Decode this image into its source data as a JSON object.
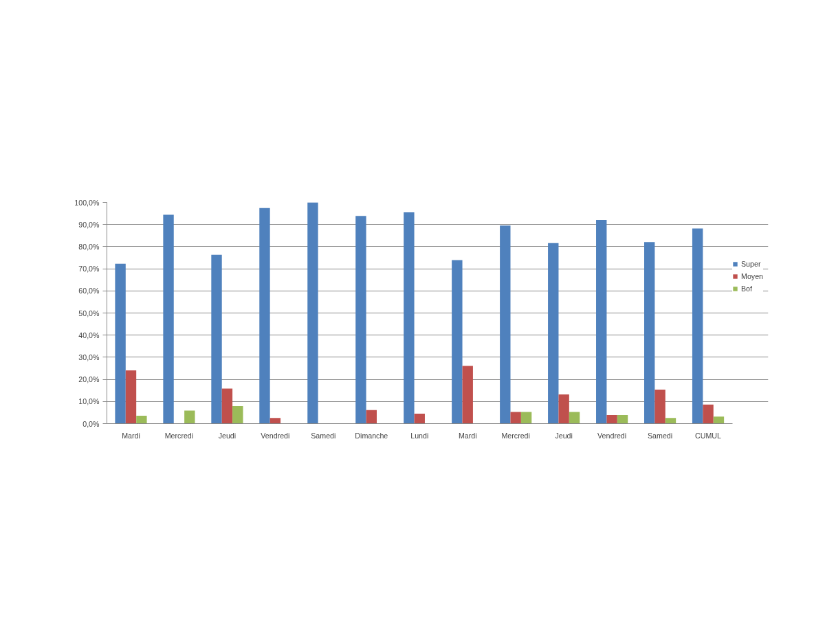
{
  "chart_data": {
    "type": "bar",
    "categories": [
      "Mardi",
      "Mercredi",
      "Jeudi",
      "Vendredi",
      "Samedi",
      "Dimanche",
      "Lundi",
      "Mardi",
      "Mercredi",
      "Jeudi",
      "Vendredi",
      "Samedi",
      "CUMUL"
    ],
    "series": [
      {
        "name": "Super",
        "color": "#4f81bd",
        "values": [
          72.3,
          94.4,
          76.3,
          97.4,
          100,
          93.9,
          95.5,
          73.9,
          89.5,
          81.6,
          92.1,
          82.1,
          88.2
        ]
      },
      {
        "name": "Moyen",
        "color": "#c0504d",
        "values": [
          24.1,
          0,
          15.8,
          2.6,
          0,
          6.1,
          4.5,
          26.1,
          5.3,
          13.2,
          3.9,
          15.4,
          8.6
        ]
      },
      {
        "name": "Bof",
        "color": "#9bbb59",
        "values": [
          3.6,
          5.9,
          7.9,
          0,
          0,
          0,
          0,
          0,
          5.3,
          5.3,
          3.9,
          2.6,
          3.2
        ]
      }
    ],
    "ylim": [
      0,
      100
    ],
    "yticks": [
      {
        "value": 0,
        "label": "0,0%"
      },
      {
        "value": 10,
        "label": "10,0%"
      },
      {
        "value": 20,
        "label": "20,0%"
      },
      {
        "value": 30,
        "label": "30,0%"
      },
      {
        "value": 40,
        "label": "40,0%"
      },
      {
        "value": 50,
        "label": "50,0%"
      },
      {
        "value": 60,
        "label": "60,0%"
      },
      {
        "value": 70,
        "label": "70,0%"
      },
      {
        "value": 80,
        "label": "80,0%"
      },
      {
        "value": 90,
        "label": "90,0%"
      },
      {
        "value": 100,
        "label": "100,0%"
      }
    ],
    "grid": "y",
    "legend": "right"
  }
}
